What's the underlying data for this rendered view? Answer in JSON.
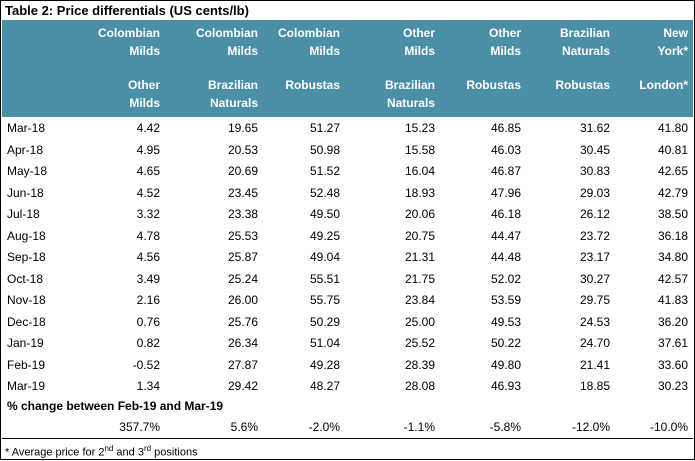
{
  "title": "Table 2:  Price differentials (US cents/lb)",
  "header_color": "#4a8fa6",
  "columns": [
    {
      "top": "Colombian\nMilds",
      "bottom": "Other\nMilds"
    },
    {
      "top": "Colombian\nMilds",
      "bottom": "Brazilian\nNaturals"
    },
    {
      "top": "Colombian\nMilds",
      "bottom": "Robustas"
    },
    {
      "top": "Other\nMilds",
      "bottom": "Brazilian\nNaturals"
    },
    {
      "top": "Other\nMilds",
      "bottom": "Robustas"
    },
    {
      "top": "Brazilian\nNaturals",
      "bottom": "Robustas"
    },
    {
      "top": "New\nYork*",
      "bottom": "London*"
    }
  ],
  "rows": [
    {
      "month": "Mar-18",
      "values": [
        "4.42",
        "19.65",
        "51.27",
        "15.23",
        "46.85",
        "31.62",
        "41.80"
      ]
    },
    {
      "month": "Apr-18",
      "values": [
        "4.95",
        "20.53",
        "50.98",
        "15.58",
        "46.03",
        "30.45",
        "40.81"
      ]
    },
    {
      "month": "May-18",
      "values": [
        "4.65",
        "20.69",
        "51.52",
        "16.04",
        "46.87",
        "30.83",
        "42.65"
      ]
    },
    {
      "month": "Jun-18",
      "values": [
        "4.52",
        "23.45",
        "52.48",
        "18.93",
        "47.96",
        "29.03",
        "42.79"
      ]
    },
    {
      "month": "Jul-18",
      "values": [
        "3.32",
        "23.38",
        "49.50",
        "20.06",
        "46.18",
        "26.12",
        "38.50"
      ]
    },
    {
      "month": "Aug-18",
      "values": [
        "4.78",
        "25.53",
        "49.25",
        "20.75",
        "44.47",
        "23.72",
        "36.18"
      ]
    },
    {
      "month": "Sep-18",
      "values": [
        "4.56",
        "25.87",
        "49.04",
        "21.31",
        "44.48",
        "23.17",
        "34.80"
      ]
    },
    {
      "month": "Oct-18",
      "values": [
        "3.49",
        "25.24",
        "55.51",
        "21.75",
        "52.02",
        "30.27",
        "42.57"
      ]
    },
    {
      "month": "Nov-18",
      "values": [
        "2.16",
        "26.00",
        "55.75",
        "23.84",
        "53.59",
        "29.75",
        "41.83"
      ]
    },
    {
      "month": "Dec-18",
      "values": [
        "0.76",
        "25.76",
        "50.29",
        "25.00",
        "49.53",
        "24.53",
        "36.20"
      ]
    },
    {
      "month": "Jan-19",
      "values": [
        "0.82",
        "26.34",
        "51.04",
        "25.52",
        "50.22",
        "24.70",
        "37.61"
      ]
    },
    {
      "month": "Feb-19",
      "values": [
        "-0.52",
        "27.87",
        "49.28",
        "28.39",
        "49.80",
        "21.41",
        "33.60"
      ]
    },
    {
      "month": "Mar-19",
      "values": [
        "1.34",
        "29.42",
        "48.27",
        "28.08",
        "46.93",
        "18.85",
        "30.23"
      ]
    }
  ],
  "change_label": "% change between Feb-19 and Mar-19",
  "change_values": [
    "357.7%",
    "5.6%",
    "-2.0%",
    "-1.1%",
    "-5.8%",
    "-12.0%",
    "-10.0%"
  ],
  "footnote": {
    "prefix": "* Average price for 2",
    "sup1": "nd",
    "middle": " and 3",
    "sup2": "rd",
    "suffix": " positions"
  }
}
